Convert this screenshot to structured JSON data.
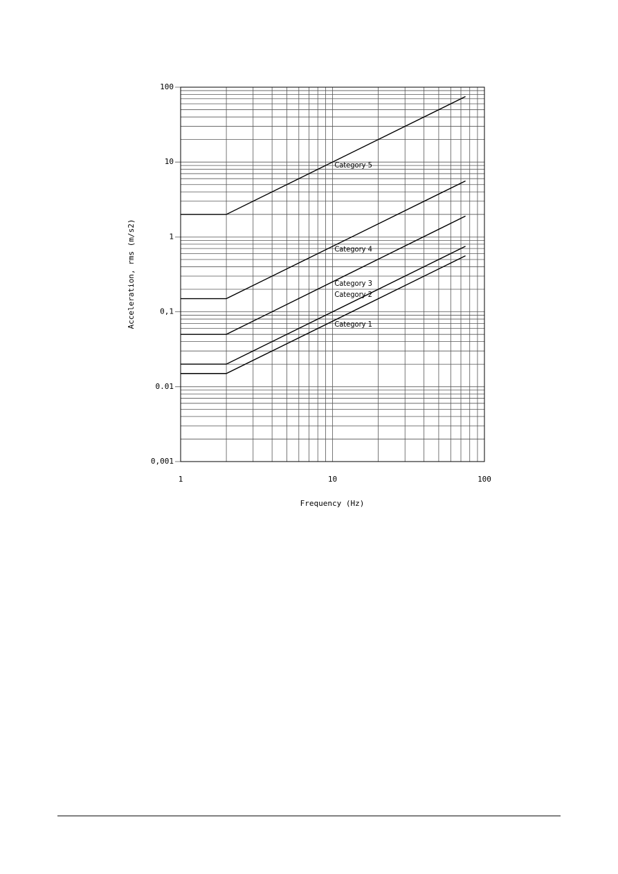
{
  "chart_data": {
    "type": "line",
    "xlabel": "Frequency (Hz)",
    "ylabel": "Acceleration, rms (m/s2)",
    "x": [
      1,
      2,
      75
    ],
    "series": [
      {
        "name": "Category 5",
        "color": "#000000",
        "values": [
          2,
          2,
          75
        ]
      },
      {
        "name": "Category 4",
        "color": "#000000",
        "values": [
          0.15,
          0.15,
          5.6
        ]
      },
      {
        "name": "Category 3",
        "color": "#000000",
        "values": [
          0.05,
          0.05,
          1.9
        ]
      },
      {
        "name": "Category 2",
        "color": "#000000",
        "values": [
          0.02,
          0.02,
          0.75
        ]
      },
      {
        "name": "Category 1",
        "color": "#000000",
        "values": [
          0.015,
          0.015,
          0.56
        ]
      }
    ],
    "xlim": [
      1,
      100
    ],
    "xticks": [
      1,
      10,
      100
    ],
    "ylim": [
      0.001,
      100
    ],
    "yticks": [
      {
        "value": 0.001,
        "label": "0,001"
      },
      0.01,
      {
        "value": 0.1,
        "label": "0,1"
      },
      1,
      10,
      100
    ],
    "xscale": "log",
    "yscale": "log",
    "grid": true,
    "minor_grid": true
  }
}
